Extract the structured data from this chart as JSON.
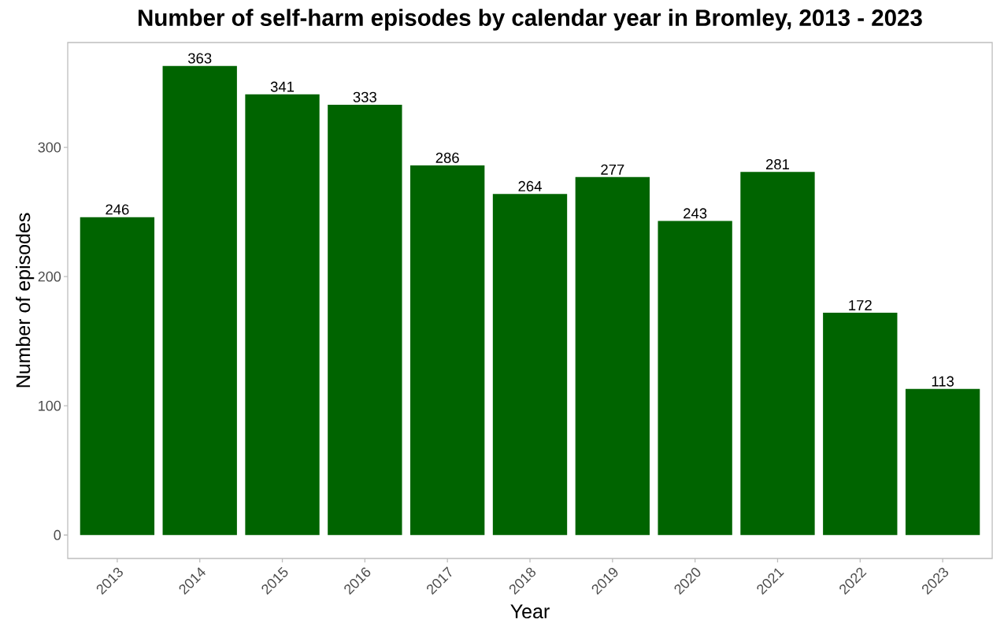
{
  "chart_data": {
    "type": "bar",
    "title": "Number of self-harm episodes by calendar year in Bromley, 2013 - 2023",
    "xlabel": "Year",
    "ylabel": "Number of episodes",
    "categories": [
      "2013",
      "2014",
      "2015",
      "2016",
      "2017",
      "2018",
      "2019",
      "2020",
      "2021",
      "2022",
      "2023"
    ],
    "values": [
      246,
      363,
      341,
      333,
      286,
      264,
      277,
      243,
      281,
      172,
      113
    ],
    "color": "#006400",
    "ylim": [
      -18.15,
      381.15
    ],
    "yticks": [
      0,
      100,
      200,
      300
    ],
    "data_labels": true
  }
}
